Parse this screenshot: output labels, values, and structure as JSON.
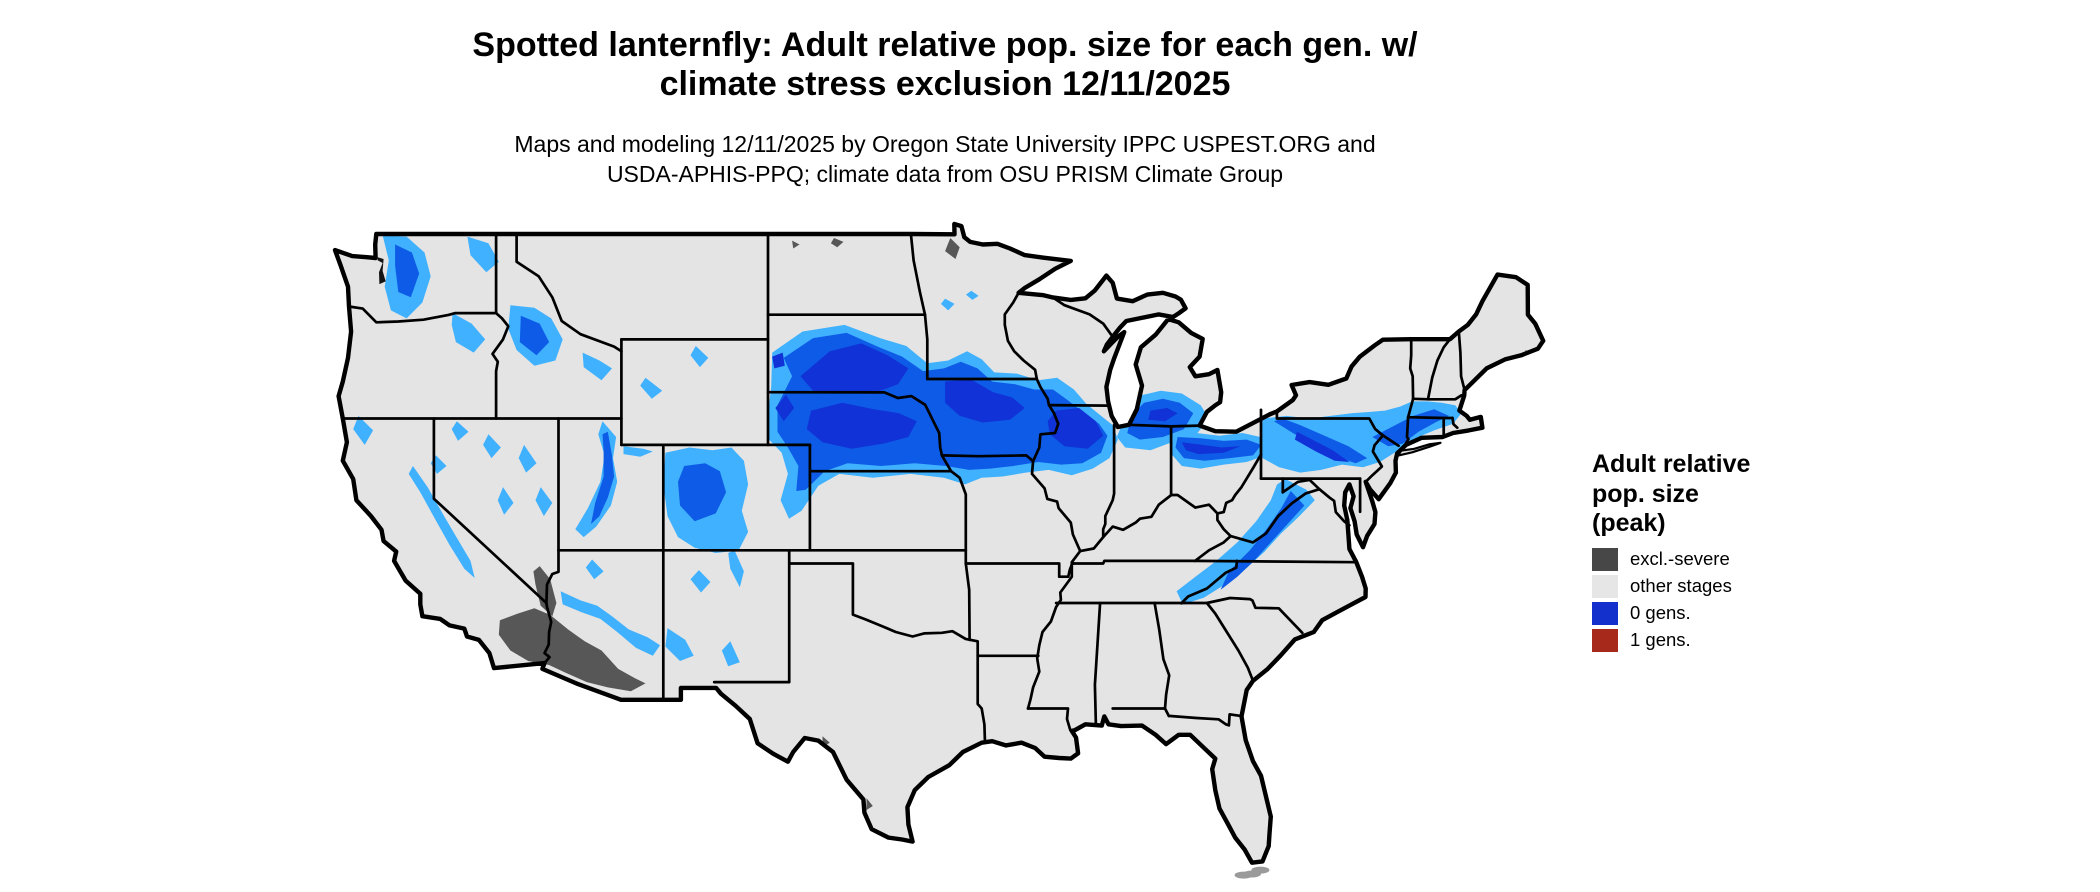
{
  "title": "Spotted lanternfly: Adult relative pop. size for each gen. w/\nclimate stress exclusion 12/11/2025",
  "subtitle": "Maps and modeling 12/11/2025 by Oregon State University IPPC USPEST.ORG and\nUSDA-APHIS-PPQ; climate data from OSU PRISM Climate Group",
  "legend": {
    "title": "Adult relative\npop. size\n(peak)",
    "items": [
      {
        "label": "excl.-severe",
        "color": "#474747"
      },
      {
        "label": "other stages",
        "color": "#e6e6e6"
      },
      {
        "label": "0 gens.",
        "color": "#1430cc"
      },
      {
        "label": "1 gens.",
        "color": "#a6291b"
      }
    ]
  },
  "colors": {
    "background": "#ffffff",
    "land": "#e4e4e4",
    "border": "#000000",
    "excluded": "#575757",
    "gens0_light": "#3fb1fe",
    "gens0_mid": "#0d5be6",
    "gens0_core": "#1032d6",
    "water_mark": "#141414",
    "keys": "#9a9a9a"
  }
}
